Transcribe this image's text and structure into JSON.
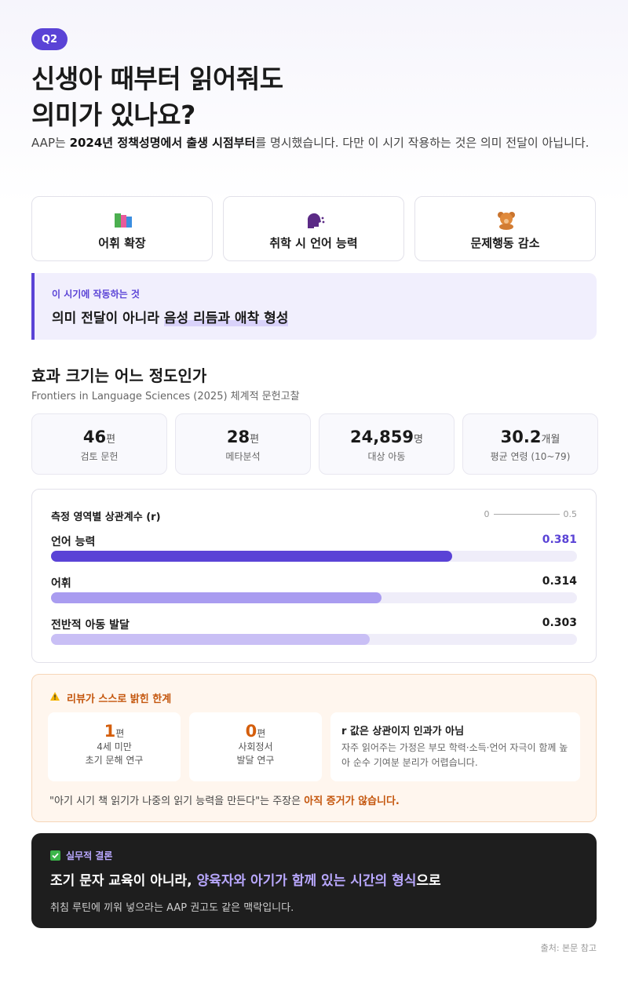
{
  "header": {
    "badge": "Q2",
    "title": [
      "신생아 때부터 읽어줘도",
      "의미가 있나요?"
    ],
    "intro": [
      "AAP는 ",
      "2024년 정책성명에서 출생 시점부터",
      "를 명시했습니다. 다만 이 시기 작용하는 것은 의미 전달이 아닙니다."
    ]
  },
  "cards": [
    "어휘 확장",
    "취학 시 언어 능력",
    "문제행동 감소"
  ],
  "callout": {
    "label": "이 시기에 작동하는 것",
    "text": "의미 전달이 아니라 ",
    "highlight": "음성 리듬과 애착 형성"
  },
  "section": {
    "title": "효과 크기는 어느 정도인가",
    "source": "Frontiers in Language Sciences (2025) 체계적 문헌고찰"
  },
  "stats": [
    {
      "value": 46,
      "unit": "편",
      "label": "검토 문헌"
    },
    {
      "value": 28,
      "unit": "편",
      "label": "메타분석"
    },
    {
      "value": "24,859",
      "unit": "명",
      "label": "대상 아동"
    },
    {
      "value": 30.2,
      "unit": "개월",
      "label": "평균 연령 (10~79)"
    }
  ],
  "chart_data": {
    "type": "bar",
    "title": "측정 영역별 상관계수 (r)",
    "categories": [
      "언어 능력",
      "어휘",
      "전반적 아동 발달"
    ],
    "values": [
      0.381,
      0.314,
      0.303
    ],
    "colors": [
      "#5a43d6",
      "#a99cf0",
      "#c9bff5"
    ],
    "xlim": [
      0,
      0.5
    ]
  },
  "limits": {
    "title": "리뷰가 스스로 밝힌 한계",
    "items": [
      {
        "value": 1,
        "unit": "편",
        "lines": [
          "4세 미만",
          "초기 문해 연구"
        ]
      },
      {
        "value": 0,
        "unit": "편",
        "lines": [
          "사회정서",
          "발달 연구"
        ]
      }
    ],
    "note": {
      "title": "r 값은 상관이지 인과가 아님",
      "text": "자주 읽어주는 가정은 부모 학력·소득·언어 자극이 함께 높아 순수 기여분 분리가 어렵습니다."
    },
    "quote": [
      "\"아기 시기 책 읽기가 나중의 읽기 능력을 만든다\"는 주장은 ",
      "아직 증거가 않습니다."
    ]
  },
  "conclusion": {
    "label": "실무적 결론",
    "heading": [
      "조기 문자 교육이 아니라, ",
      "양육자와 아기가 함께 있는 시간의 형식",
      "으로"
    ],
    "text": "취침 루틴에 끼워 넣으라는 AAP 권고도 같은 맥락입니다."
  },
  "footer": "출처: 본문 참고"
}
